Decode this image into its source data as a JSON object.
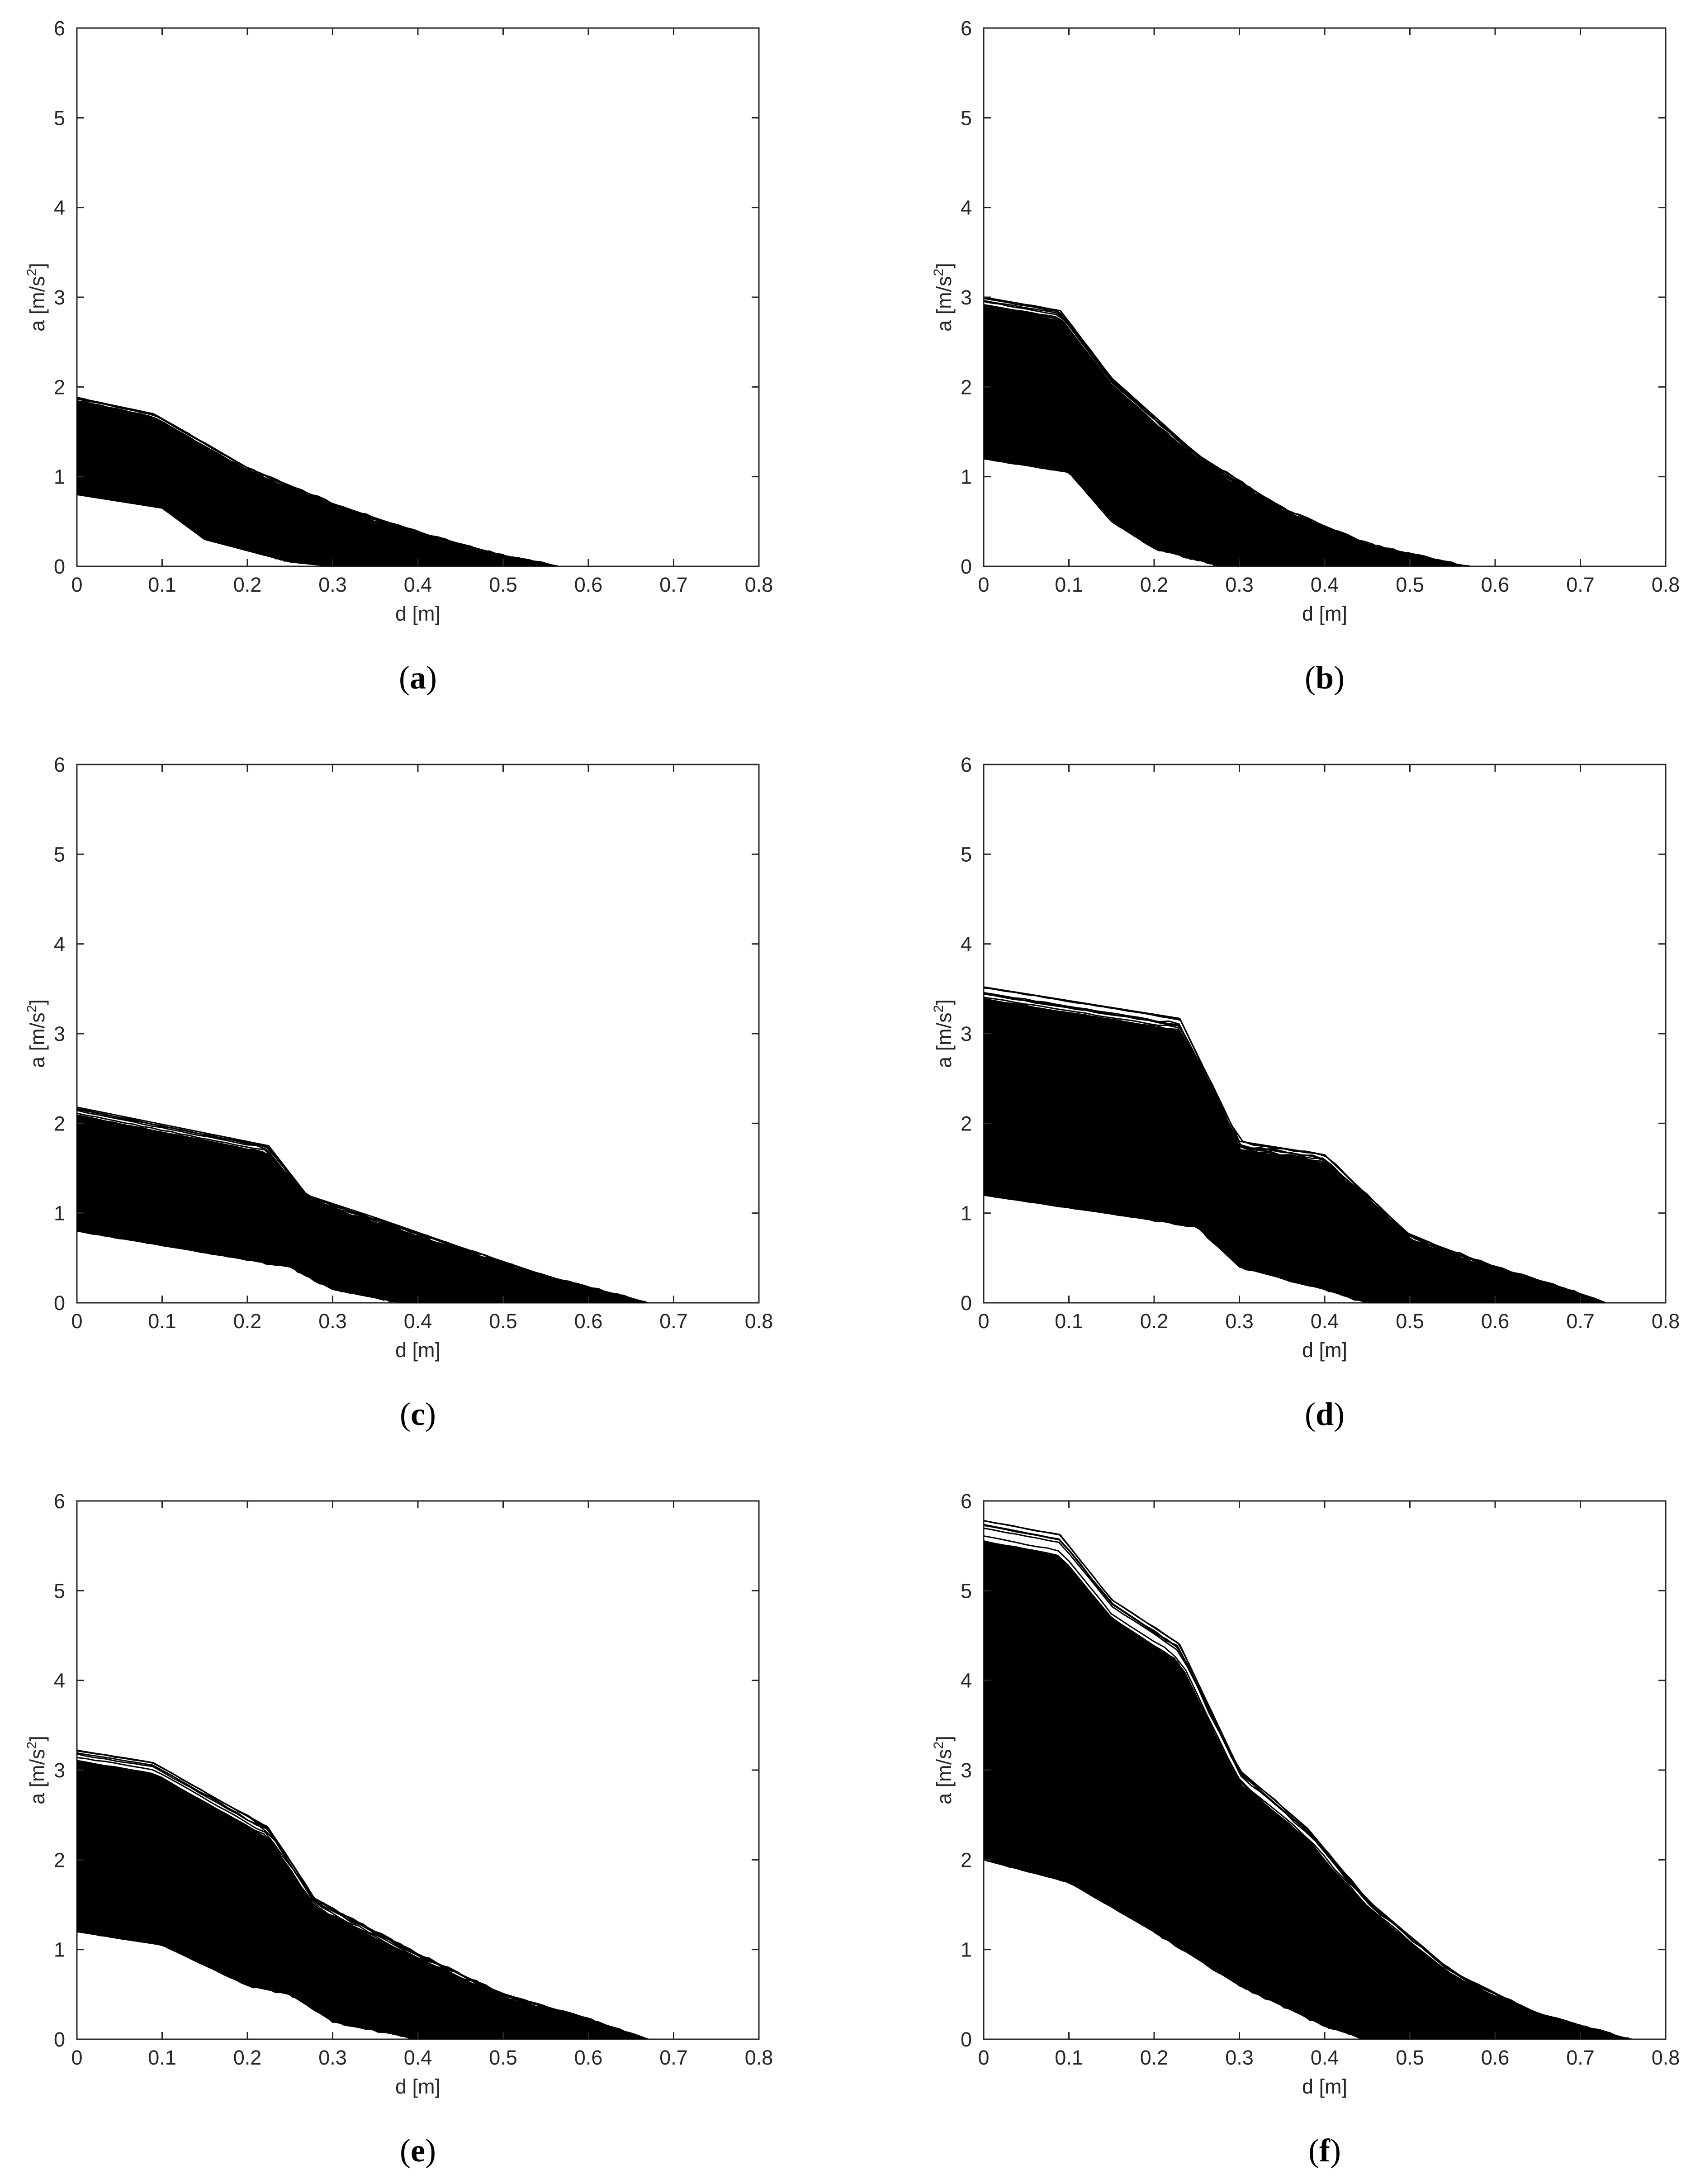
{
  "figure": {
    "panels": [
      {
        "caption_open": "(",
        "caption_letter": "a",
        "caption_close": ")"
      },
      {
        "caption_open": "(",
        "caption_letter": "b",
        "caption_close": ")"
      },
      {
        "caption_open": "(",
        "caption_letter": "c",
        "caption_close": ")"
      },
      {
        "caption_open": "(",
        "caption_letter": "d",
        "caption_close": ")"
      },
      {
        "caption_open": "(",
        "caption_letter": "e",
        "caption_close": ")"
      },
      {
        "caption_open": "(",
        "caption_letter": "f",
        "caption_close": ")"
      }
    ]
  },
  "chart_data": [
    {
      "type": "line",
      "xlabel": "d [m]",
      "ylabel_main": "a [m/s",
      "ylabel_sup": "2",
      "ylabel_tail": "]",
      "xlim": [
        0,
        0.8
      ],
      "ylim": [
        0,
        6
      ],
      "xticks": [
        "0",
        "0.1",
        "0.2",
        "0.3",
        "0.4",
        "0.5",
        "0.6",
        "0.7",
        "0.8"
      ],
      "yticks": [
        "0",
        "1",
        "2",
        "3",
        "4",
        "5",
        "6"
      ],
      "grid": false,
      "line_color": "#000000",
      "envelope": {
        "upper": [
          [
            0,
            1.88
          ],
          [
            0.09,
            1.7
          ],
          [
            0.2,
            1.1
          ],
          [
            0.3,
            0.7
          ],
          [
            0.4,
            0.38
          ],
          [
            0.5,
            0.12
          ],
          [
            0.565,
            0
          ]
        ],
        "lower": [
          [
            0,
            0.8
          ],
          [
            0.1,
            0.65
          ],
          [
            0.15,
            0.3
          ],
          [
            0.25,
            0.05
          ],
          [
            0.3,
            0
          ]
        ],
        "peak_at_zero_range": [
          0.8,
          1.88
        ],
        "max_end_x": 0.565
      }
    },
    {
      "type": "line",
      "xlabel": "d [m]",
      "ylabel_main": "a [m/s",
      "ylabel_sup": "2",
      "ylabel_tail": "]",
      "xlim": [
        0,
        0.8
      ],
      "ylim": [
        0,
        6
      ],
      "xticks": [
        "0",
        "0.1",
        "0.2",
        "0.3",
        "0.4",
        "0.5",
        "0.6",
        "0.7",
        "0.8"
      ],
      "yticks": [
        "0",
        "1",
        "2",
        "3",
        "4",
        "5",
        "6"
      ],
      "grid": false,
      "line_color": "#000000",
      "envelope": {
        "upper": [
          [
            0,
            3.0
          ],
          [
            0.09,
            2.85
          ],
          [
            0.15,
            2.1
          ],
          [
            0.25,
            1.25
          ],
          [
            0.35,
            0.65
          ],
          [
            0.45,
            0.25
          ],
          [
            0.55,
            0.03
          ],
          [
            0.57,
            0
          ]
        ],
        "lower": [
          [
            0,
            1.2
          ],
          [
            0.1,
            1.05
          ],
          [
            0.15,
            0.5
          ],
          [
            0.2,
            0.2
          ],
          [
            0.28,
            0
          ]
        ],
        "peak_at_zero_range": [
          1.2,
          3.0
        ],
        "max_end_x": 0.57
      }
    },
    {
      "type": "line",
      "xlabel": "d [m]",
      "ylabel_main": "a [m/s",
      "ylabel_sup": "2",
      "ylabel_tail": "]",
      "xlim": [
        0,
        0.8
      ],
      "ylim": [
        0,
        6
      ],
      "xticks": [
        "0",
        "0.1",
        "0.2",
        "0.3",
        "0.4",
        "0.5",
        "0.6",
        "0.7",
        "0.8"
      ],
      "yticks": [
        "0",
        "1",
        "2",
        "3",
        "4",
        "5",
        "6"
      ],
      "grid": false,
      "line_color": "#000000",
      "envelope": {
        "upper": [
          [
            0,
            2.18
          ],
          [
            0.225,
            1.75
          ],
          [
            0.27,
            1.2
          ],
          [
            0.35,
            0.95
          ],
          [
            0.45,
            0.62
          ],
          [
            0.55,
            0.3
          ],
          [
            0.67,
            0
          ]
        ],
        "lower": [
          [
            0,
            0.8
          ],
          [
            0.25,
            0.4
          ],
          [
            0.3,
            0.15
          ],
          [
            0.38,
            0
          ]
        ],
        "peak_at_zero_range": [
          0.8,
          2.18
        ],
        "max_end_x": 0.67
      }
    },
    {
      "type": "line",
      "xlabel": "d [m]",
      "ylabel_main": "a [m/s",
      "ylabel_sup": "2",
      "ylabel_tail": "]",
      "xlim": [
        0,
        0.8
      ],
      "ylim": [
        0,
        6
      ],
      "xticks": [
        "0",
        "0.1",
        "0.2",
        "0.3",
        "0.4",
        "0.5",
        "0.6",
        "0.7",
        "0.8"
      ],
      "yticks": [
        "0",
        "1",
        "2",
        "3",
        "4",
        "5",
        "6"
      ],
      "grid": false,
      "line_color": "#000000",
      "envelope": {
        "upper": [
          [
            0,
            3.52
          ],
          [
            0.23,
            3.17
          ],
          [
            0.3,
            1.8
          ],
          [
            0.4,
            1.65
          ],
          [
            0.5,
            0.75
          ],
          [
            0.6,
            0.4
          ],
          [
            0.7,
            0.1
          ],
          [
            0.73,
            0
          ]
        ],
        "lower": [
          [
            0,
            1.2
          ],
          [
            0.25,
            0.85
          ],
          [
            0.3,
            0.4
          ],
          [
            0.4,
            0.15
          ],
          [
            0.45,
            0
          ]
        ],
        "peak_at_zero_range": [
          1.2,
          3.52
        ],
        "max_end_x": 0.73
      }
    },
    {
      "type": "line",
      "xlabel": "d [m]",
      "ylabel_main": "a [m/s",
      "ylabel_sup": "2",
      "ylabel_tail": "]",
      "xlim": [
        0,
        0.8
      ],
      "ylim": [
        0,
        6
      ],
      "xticks": [
        "0",
        "0.1",
        "0.2",
        "0.3",
        "0.4",
        "0.5",
        "0.6",
        "0.7",
        "0.8"
      ],
      "yticks": [
        "0",
        "1",
        "2",
        "3",
        "4",
        "5",
        "6"
      ],
      "grid": false,
      "line_color": "#000000",
      "envelope": {
        "upper": [
          [
            0,
            3.22
          ],
          [
            0.09,
            3.08
          ],
          [
            0.225,
            2.35
          ],
          [
            0.28,
            1.55
          ],
          [
            0.4,
            0.95
          ],
          [
            0.5,
            0.5
          ],
          [
            0.6,
            0.22
          ],
          [
            0.67,
            0
          ]
        ],
        "lower": [
          [
            0,
            1.2
          ],
          [
            0.1,
            1.05
          ],
          [
            0.2,
            0.6
          ],
          [
            0.25,
            0.5
          ],
          [
            0.3,
            0.2
          ],
          [
            0.4,
            0
          ]
        ],
        "peak_at_zero_range": [
          1.2,
          3.22
        ],
        "max_end_x": 0.67
      }
    },
    {
      "type": "line",
      "xlabel": "d [m]",
      "ylabel_main": "a [m/s",
      "ylabel_sup": "2",
      "ylabel_tail": "]",
      "xlim": [
        0,
        0.8
      ],
      "ylim": [
        0,
        6
      ],
      "xticks": [
        "0",
        "0.1",
        "0.2",
        "0.3",
        "0.4",
        "0.5",
        "0.6",
        "0.7",
        "0.8"
      ],
      "yticks": [
        "0",
        "1",
        "2",
        "3",
        "4",
        "5",
        "6"
      ],
      "grid": false,
      "line_color": "#000000",
      "envelope": {
        "upper": [
          [
            0,
            5.78
          ],
          [
            0.09,
            5.62
          ],
          [
            0.15,
            4.9
          ],
          [
            0.23,
            4.4
          ],
          [
            0.3,
            3.0
          ],
          [
            0.38,
            2.35
          ],
          [
            0.45,
            1.55
          ],
          [
            0.55,
            0.75
          ],
          [
            0.65,
            0.28
          ],
          [
            0.75,
            0.02
          ],
          [
            0.76,
            0
          ]
        ],
        "lower": [
          [
            0,
            2.0
          ],
          [
            0.1,
            1.75
          ],
          [
            0.2,
            1.2
          ],
          [
            0.3,
            0.6
          ],
          [
            0.4,
            0.15
          ],
          [
            0.45,
            0
          ]
        ],
        "peak_at_zero_range": [
          2.0,
          5.78
        ],
        "max_end_x": 0.76
      }
    }
  ]
}
